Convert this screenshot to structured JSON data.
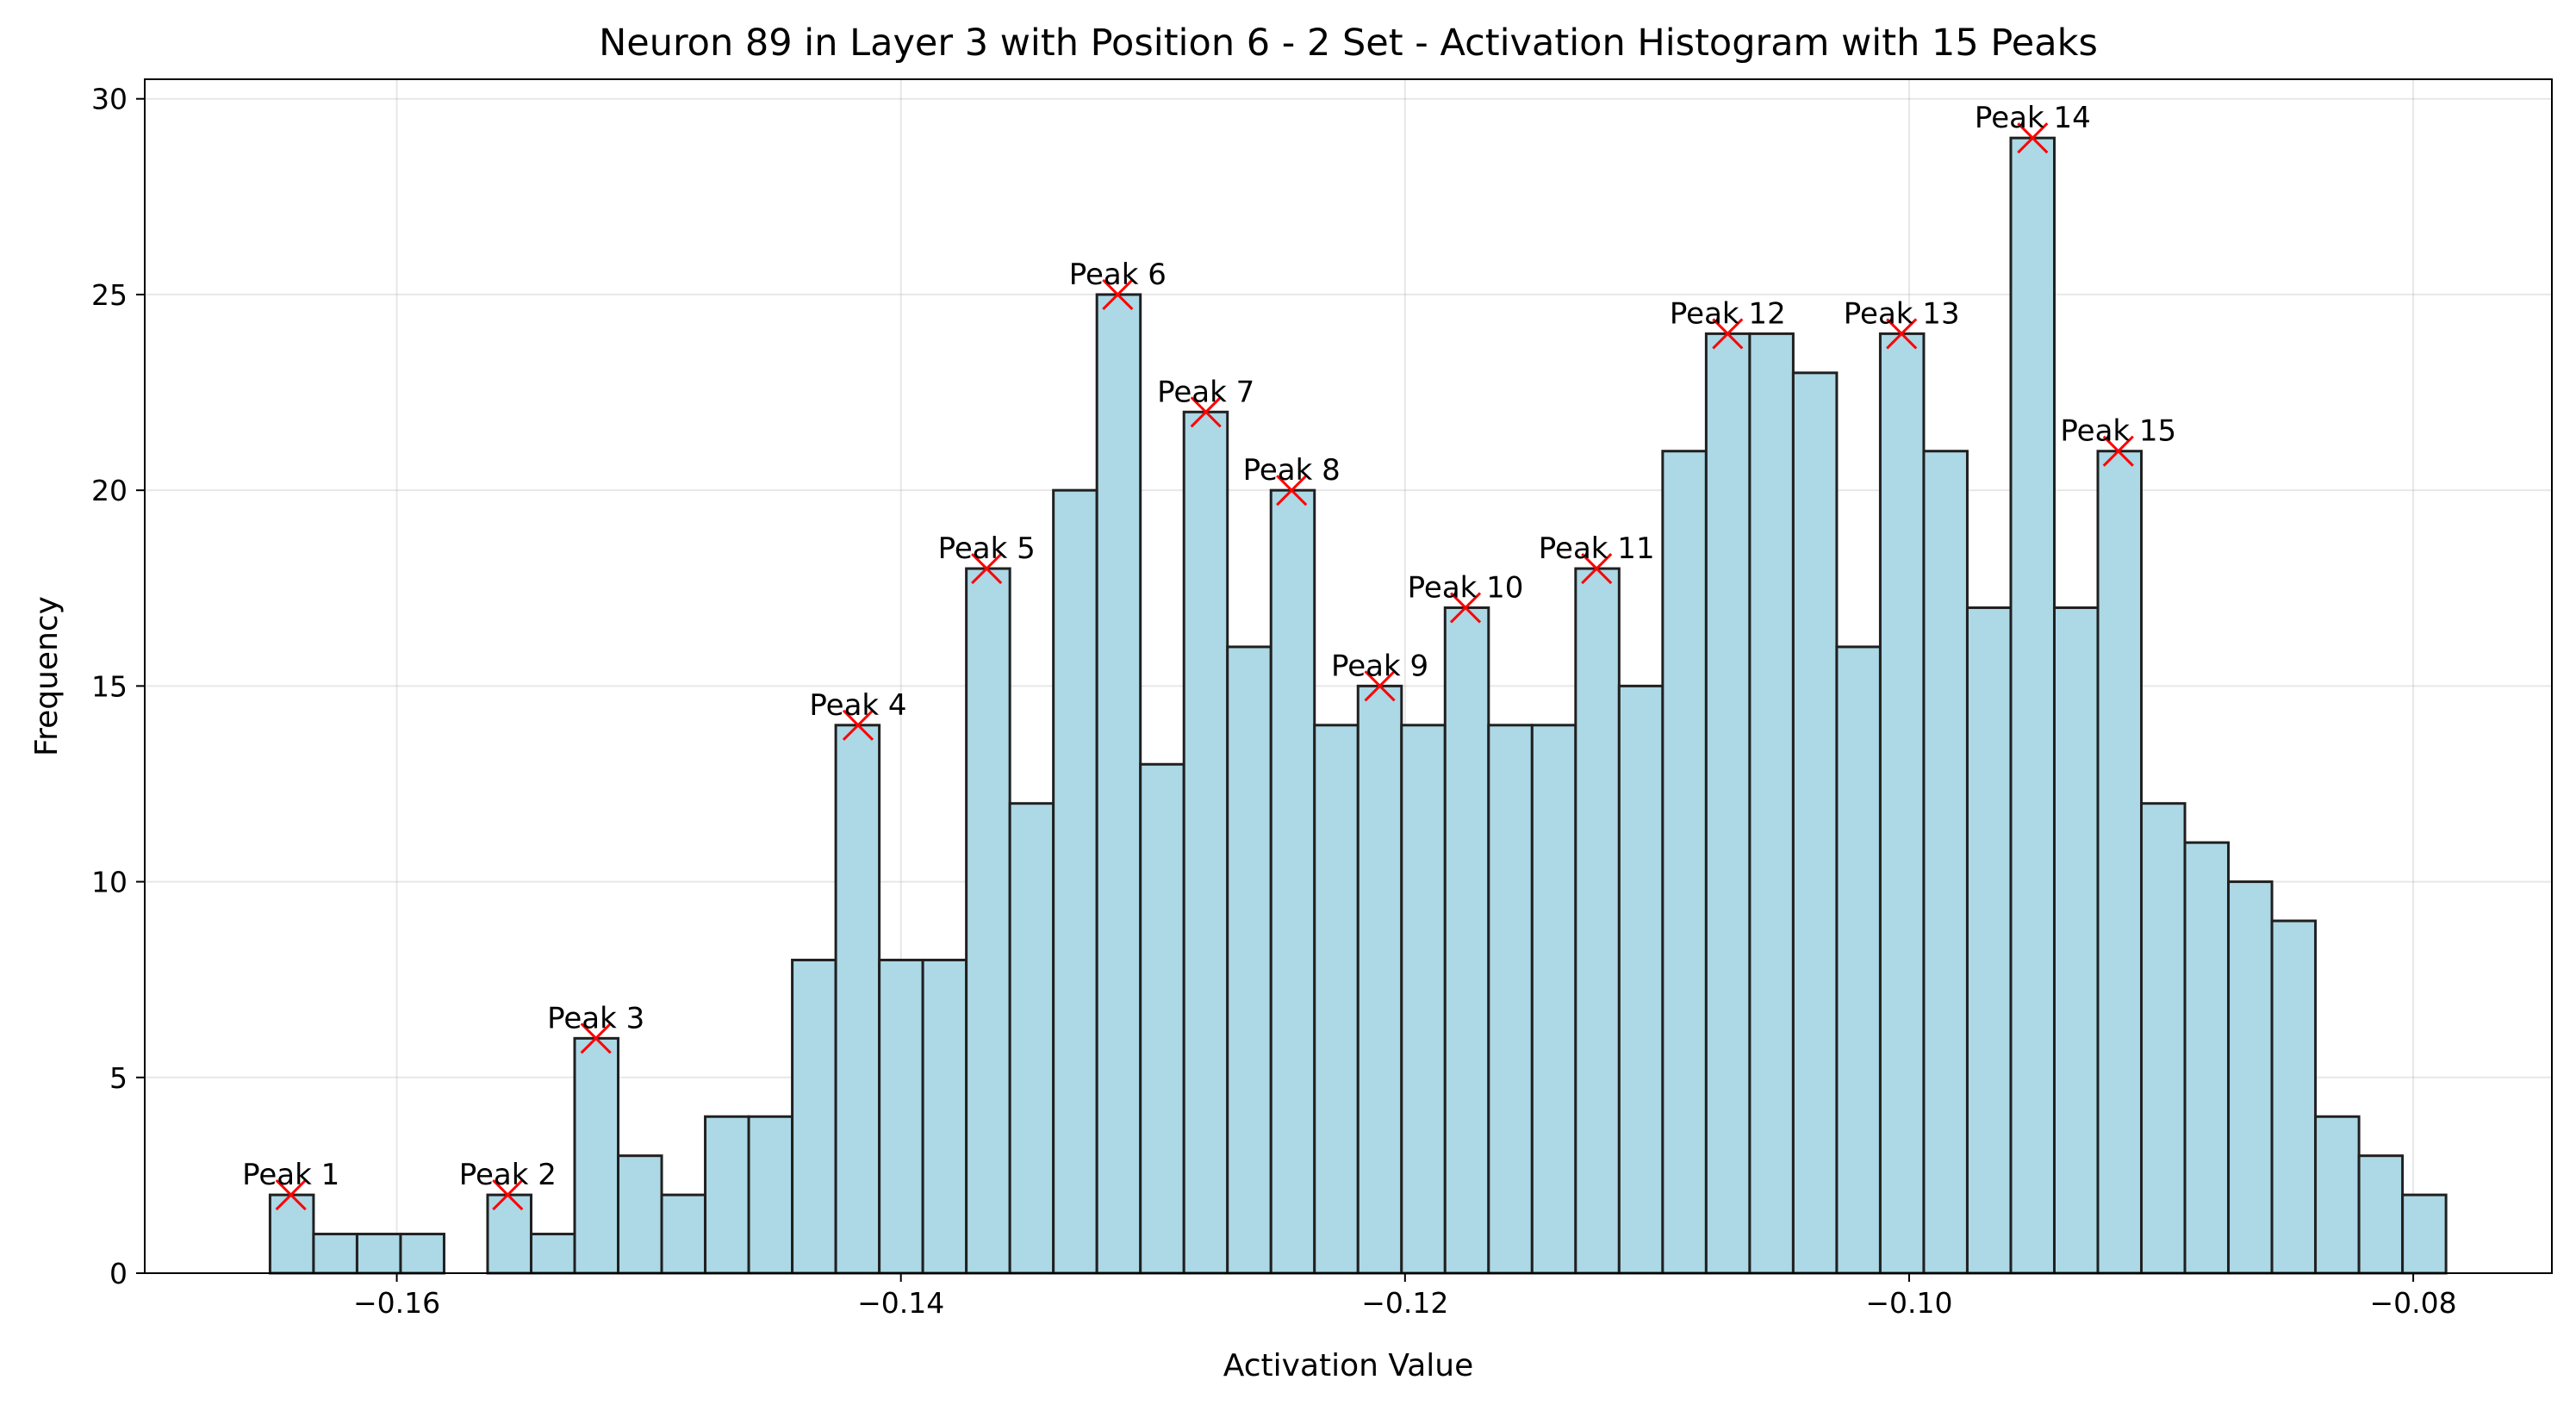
{
  "chart_data": {
    "type": "bar",
    "title": "Neuron 89 in Layer 3 with Position 6 - 2 Set - Activation Histogram with 15 Peaks",
    "xlabel": "Activation Value",
    "ylabel": "Frequency",
    "xlim": [
      -0.17,
      -0.0745
    ],
    "ylim": [
      0,
      30.5
    ],
    "grid": true,
    "x_ticks": [
      -0.16,
      -0.14,
      -0.12,
      -0.1,
      -0.08
    ],
    "x_tick_labels": [
      "−0.16",
      "−0.14",
      "−0.12",
      "−0.10",
      "−0.08"
    ],
    "y_ticks": [
      0,
      5,
      10,
      15,
      20,
      25,
      30
    ],
    "y_tick_labels": [
      "0",
      "5",
      "10",
      "15",
      "20",
      "25",
      "30"
    ],
    "bin_start": -0.16503,
    "bin_width": 0.0017266,
    "values": [
      2,
      1,
      1,
      1,
      0,
      2,
      1,
      6,
      3,
      2,
      4,
      4,
      8,
      14,
      8,
      8,
      18,
      12,
      20,
      25,
      13,
      22,
      16,
      20,
      14,
      15,
      14,
      17,
      14,
      14,
      18,
      15,
      21,
      24,
      24,
      23,
      16,
      24,
      21,
      17,
      29,
      17,
      21,
      12,
      11,
      10,
      9,
      4,
      3,
      2
    ],
    "colors": {
      "bar_fill": "#add8e6",
      "bar_edge": "#202020",
      "peak_marker": "#ff0000"
    },
    "peaks": [
      {
        "label": "Peak 1",
        "x": -0.1642,
        "y": 2
      },
      {
        "label": "Peak 2",
        "x": -0.1556,
        "y": 2
      },
      {
        "label": "Peak 3",
        "x": -0.1521,
        "y": 6
      },
      {
        "label": "Peak 4",
        "x": -0.1417,
        "y": 14
      },
      {
        "label": "Peak 5",
        "x": -0.1366,
        "y": 18
      },
      {
        "label": "Peak 6",
        "x": -0.1314,
        "y": 25
      },
      {
        "label": "Peak 7",
        "x": -0.1279,
        "y": 22
      },
      {
        "label": "Peak 8",
        "x": -0.1245,
        "y": 20
      },
      {
        "label": "Peak 9",
        "x": -0.121,
        "y": 15
      },
      {
        "label": "Peak 10",
        "x": -0.1176,
        "y": 17
      },
      {
        "label": "Peak 11",
        "x": -0.1124,
        "y": 18
      },
      {
        "label": "Peak 12",
        "x": -0.1072,
        "y": 24
      },
      {
        "label": "Peak 13",
        "x": -0.1003,
        "y": 24
      },
      {
        "label": "Peak 14",
        "x": -0.0951,
        "y": 29
      },
      {
        "label": "Peak 15",
        "x": -0.0917,
        "y": 21
      }
    ]
  }
}
